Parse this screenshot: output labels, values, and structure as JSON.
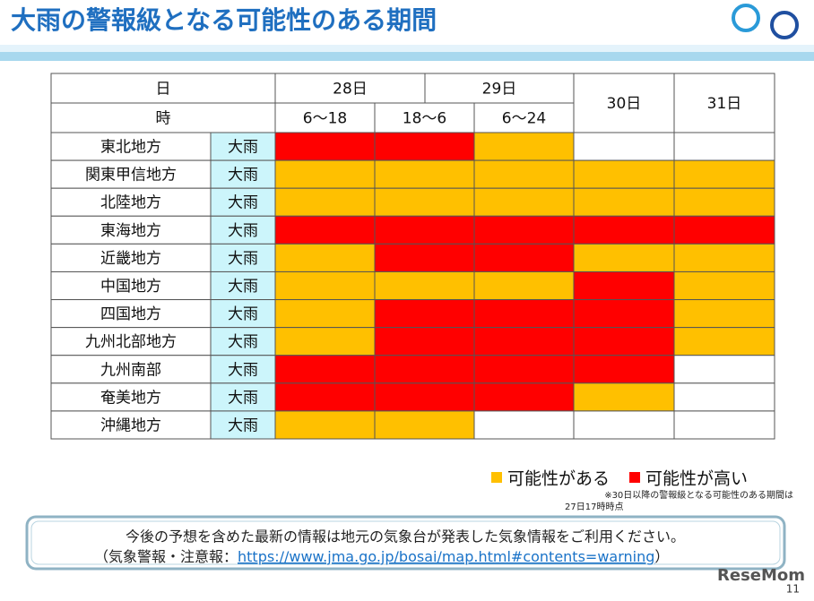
{
  "header": {
    "title": "大雨の警報級となる可能性のある期間"
  },
  "table": {
    "day_label": "日",
    "time_label": "時",
    "days": [
      "28日",
      "29日",
      "30日",
      "31日"
    ],
    "times": [
      "6～18",
      "18～6",
      "6～24"
    ],
    "rows": [
      {
        "region": "東北地方",
        "hazard": "大雨",
        "levels": [
          "可能性が高い",
          "可能性が高い",
          "可能性がある",
          null,
          null
        ]
      },
      {
        "region": "関東甲信地方",
        "hazard": "大雨",
        "levels": [
          "可能性がある",
          "可能性がある",
          "可能性がある",
          "可能性がある",
          "可能性がある"
        ]
      },
      {
        "region": "北陸地方",
        "hazard": "大雨",
        "levels": [
          "可能性がある",
          "可能性がある",
          "可能性がある",
          "可能性がある",
          "可能性がある"
        ]
      },
      {
        "region": "東海地方",
        "hazard": "大雨",
        "levels": [
          "可能性が高い",
          "可能性が高い",
          "可能性が高い",
          "可能性が高い",
          "可能性が高い"
        ]
      },
      {
        "region": "近畿地方",
        "hazard": "大雨",
        "levels": [
          "可能性がある",
          "可能性が高い",
          "可能性が高い",
          "可能性がある",
          "可能性がある"
        ]
      },
      {
        "region": "中国地方",
        "hazard": "大雨",
        "levels": [
          "可能性がある",
          "可能性がある",
          "可能性がある",
          "可能性が高い",
          "可能性がある"
        ]
      },
      {
        "region": "四国地方",
        "hazard": "大雨",
        "levels": [
          "可能性がある",
          "可能性が高い",
          "可能性が高い",
          "可能性が高い",
          "可能性がある"
        ]
      },
      {
        "region": "九州北部地方",
        "hazard": "大雨",
        "levels": [
          "可能性がある",
          "可能性が高い",
          "可能性が高い",
          "可能性が高い",
          "可能性がある"
        ]
      },
      {
        "region": "九州南部",
        "hazard": "大雨",
        "levels": [
          "可能性が高い",
          "可能性が高い",
          "可能性が高い",
          "可能性が高い",
          null
        ]
      },
      {
        "region": "奄美地方",
        "hazard": "大雨",
        "levels": [
          "可能性が高い",
          "可能性が高い",
          "可能性が高い",
          "可能性がある",
          null
        ]
      },
      {
        "region": "沖縄地方",
        "hazard": "大雨",
        "levels": [
          "可能性がある",
          "可能性がある",
          null,
          null,
          null
        ]
      }
    ]
  },
  "legend": [
    {
      "label": "可能性がある",
      "color": "#FFC000"
    },
    {
      "label": "可能性が高い",
      "color": "#FF0000"
    }
  ],
  "note": [
    "※30日以降の警報級となる可能性のある期間は",
    "27日17時時点"
  ],
  "info": {
    "line1": "今後の予想を含めた最新の情報は地元の気象台が発表した気象情報をご利用ください。",
    "line2_prefix": "（気象警報・注意報：",
    "link": "https://www.jma.go.jp/bosai/map.html#contents=warning",
    "line2_suffix": "）"
  },
  "brand": "ReseMom",
  "page": "11"
}
